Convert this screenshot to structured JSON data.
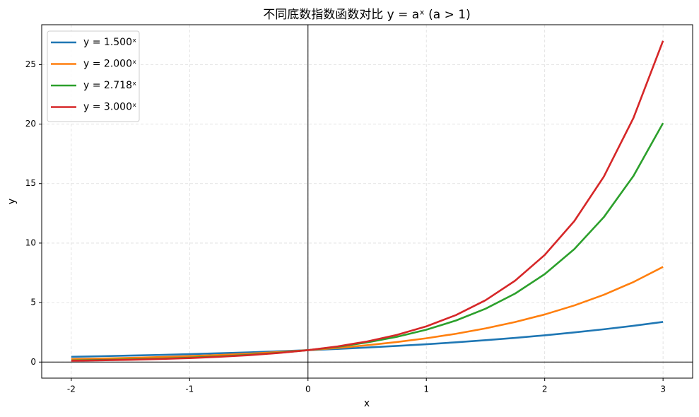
{
  "chart_data": {
    "type": "line",
    "title": "不同底数指数函数对比 y = aˣ   (a > 1)",
    "x_label": "x",
    "y_label": "y",
    "x": [
      -2,
      -1.75,
      -1.5,
      -1.25,
      -1,
      -0.75,
      -0.5,
      -0.25,
      0,
      0.25,
      0.5,
      0.75,
      1,
      1.25,
      1.5,
      1.75,
      2,
      2.25,
      2.5,
      2.75,
      3
    ],
    "series": [
      {
        "name": "y = 1.500ˣ",
        "color": "#1f77b4",
        "values": [
          0.4444,
          0.4919,
          0.5443,
          0.6024,
          0.6667,
          0.7378,
          0.8165,
          0.9036,
          1,
          1.1067,
          1.2247,
          1.3554,
          1.5,
          1.66,
          1.8371,
          2.0331,
          2.25,
          2.49,
          2.7557,
          3.0496,
          3.375
        ]
      },
      {
        "name": "y = 2.000ˣ",
        "color": "#ff7f0e",
        "values": [
          0.25,
          0.2973,
          0.3536,
          0.4204,
          0.5,
          0.5946,
          0.7071,
          0.8409,
          1,
          1.1892,
          1.4142,
          1.6818,
          2,
          2.3784,
          2.8284,
          3.3636,
          4,
          4.7568,
          5.6569,
          6.7272,
          8
        ]
      },
      {
        "name": "y = 2.718ˣ",
        "color": "#2ca02c",
        "values": [
          0.1353,
          0.1738,
          0.2231,
          0.2865,
          0.3679,
          0.4724,
          0.6065,
          0.7788,
          1,
          1.284,
          1.6487,
          2.117,
          2.7183,
          3.4903,
          4.4817,
          5.7546,
          7.3891,
          9.4877,
          12.1825,
          15.6426,
          20.0855
        ]
      },
      {
        "name": "y = 3.000ˣ",
        "color": "#d62728",
        "values": [
          0.1111,
          0.1462,
          0.1925,
          0.2533,
          0.3333,
          0.4387,
          0.5774,
          0.7598,
          1,
          1.3161,
          1.7321,
          2.2795,
          3,
          3.9482,
          5.1962,
          6.8385,
          9,
          11.8446,
          15.5885,
          20.5156,
          27
        ]
      }
    ],
    "xlim": [
      -2.25,
      3.25
    ],
    "ylim": [
      -1.35,
      28.35
    ],
    "xticks": [
      -2,
      -1,
      0,
      1,
      2,
      3
    ],
    "yticks": [
      0,
      5,
      10,
      15,
      20,
      25
    ],
    "axhline": 0,
    "axvline": 0,
    "grid": true,
    "legend": "upper-left"
  }
}
